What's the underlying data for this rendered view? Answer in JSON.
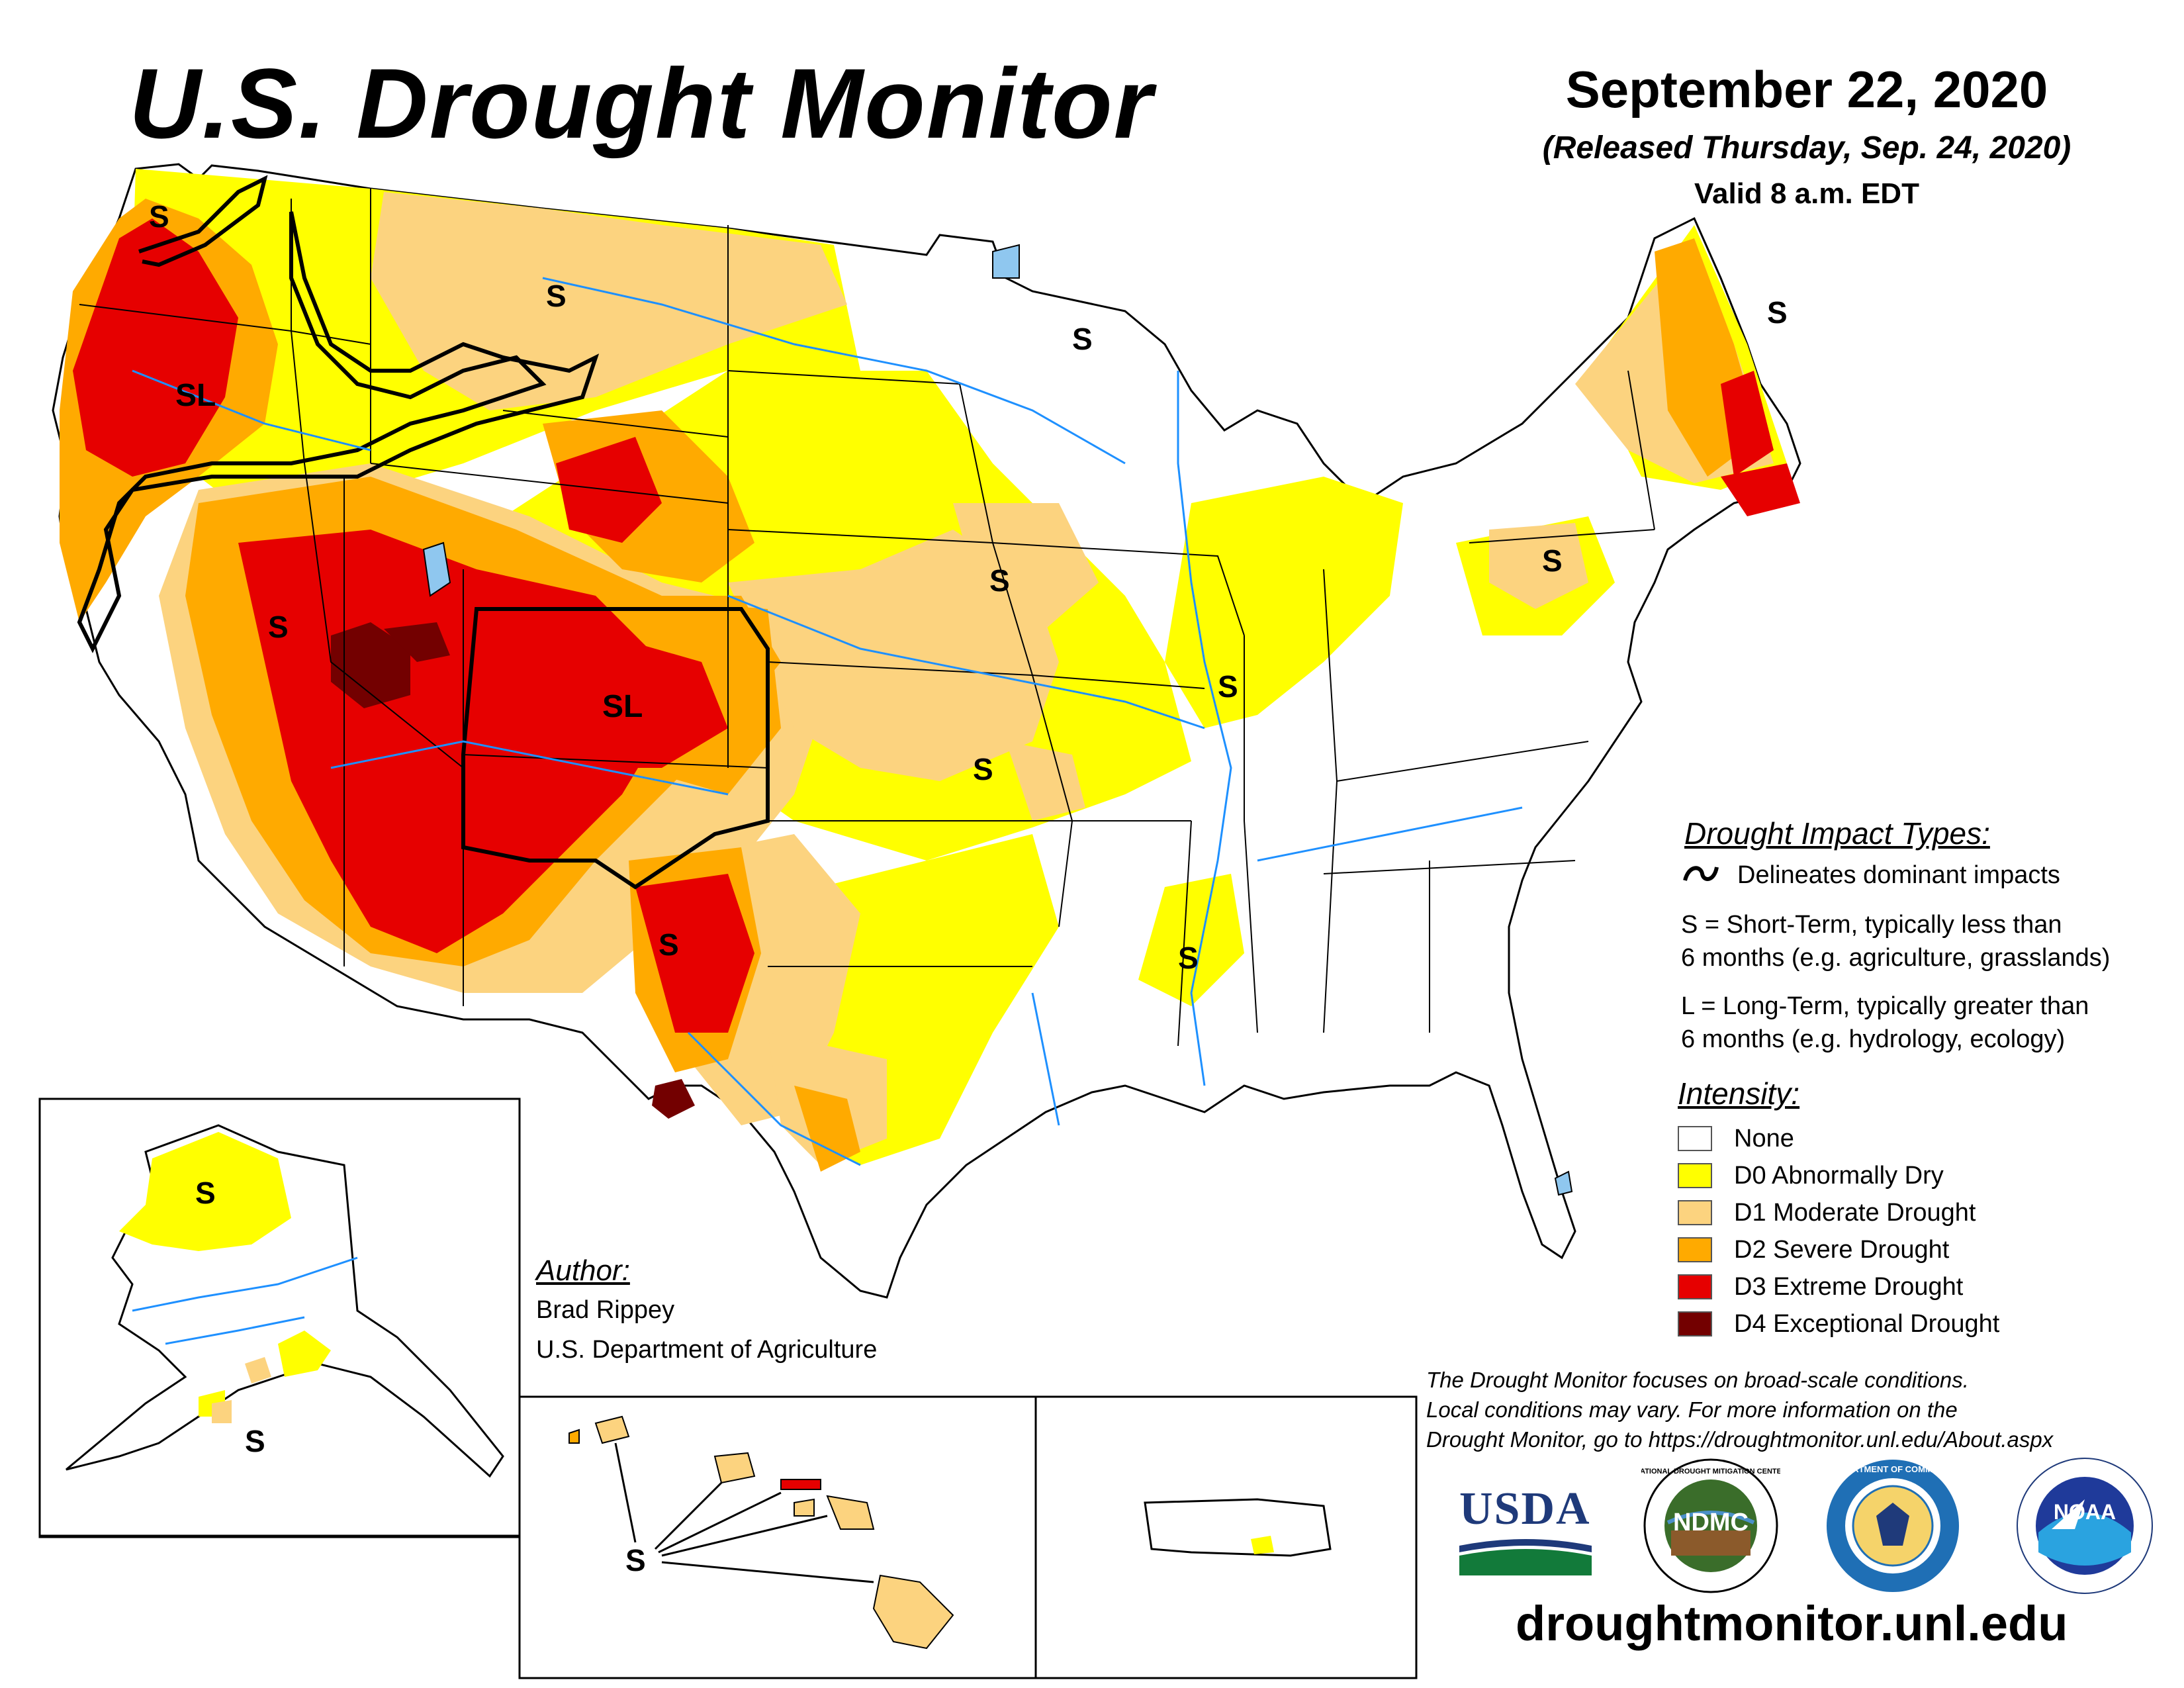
{
  "header": {
    "title": "U.S. Drought Monitor",
    "date": "September 22, 2020",
    "released": "(Released Thursday, Sep. 24, 2020)",
    "valid": "Valid 8 a.m. EDT"
  },
  "impact_legend": {
    "heading": "Drought Impact Types:",
    "line_label": "Delineates dominant impacts",
    "short_term_line1": "S = Short-Term, typically less than",
    "short_term_line2": "6 months (e.g. agriculture, grasslands)",
    "long_term_line1": "L = Long-Term, typically greater than",
    "long_term_line2": "6 months (e.g. hydrology, ecology)"
  },
  "intensity_legend": {
    "heading": "Intensity:",
    "items": [
      {
        "label": "None",
        "color": "#ffffff"
      },
      {
        "label": "D0 Abnormally Dry",
        "color": "#ffff00"
      },
      {
        "label": "D1 Moderate Drought",
        "color": "#fcd37f"
      },
      {
        "label": "D2 Severe Drought",
        "color": "#ffaa00"
      },
      {
        "label": "D3 Extreme Drought",
        "color": "#e60000"
      },
      {
        "label": "D4 Exceptional Drought",
        "color": "#730000"
      }
    ]
  },
  "author": {
    "heading": "Author:",
    "name": "Brad Rippey",
    "org": "U.S. Department of Agriculture"
  },
  "note": {
    "line1": "The Drought Monitor focuses on broad-scale conditions.",
    "line2": "Local conditions may vary. For more information on the",
    "line3": "Drought Monitor, go to https://droughtmonitor.unl.edu/About.aspx"
  },
  "website": "droughtmonitor.unl.edu",
  "logos": {
    "usda": "USDA",
    "ndmc": "NDMC",
    "ndmc_ring": "NATIONAL DROUGHT MITIGATION CENTER",
    "commerce_ring": "DEPARTMENT OF COMMERCE",
    "noaa": "NOAA"
  },
  "map_labels": {
    "wa_west": "S",
    "or_sl": "SL",
    "mt_s": "S",
    "mn_s": "S",
    "nv_s": "S",
    "co_sl": "SL",
    "ia_s": "S",
    "il_s": "S",
    "ks_s": "S",
    "nm_s": "S",
    "ms_s": "S",
    "pa_s": "S",
    "me_s": "S",
    "ak_north": "S",
    "ak_south": "S",
    "hi_s": "S"
  },
  "colors": {
    "none": "#ffffff",
    "d0": "#ffff00",
    "d1": "#fcd37f",
    "d2": "#ffaa00",
    "d3": "#e60000",
    "d4": "#730000",
    "water": "#1e90ff",
    "lake": "#8fc7ef"
  }
}
